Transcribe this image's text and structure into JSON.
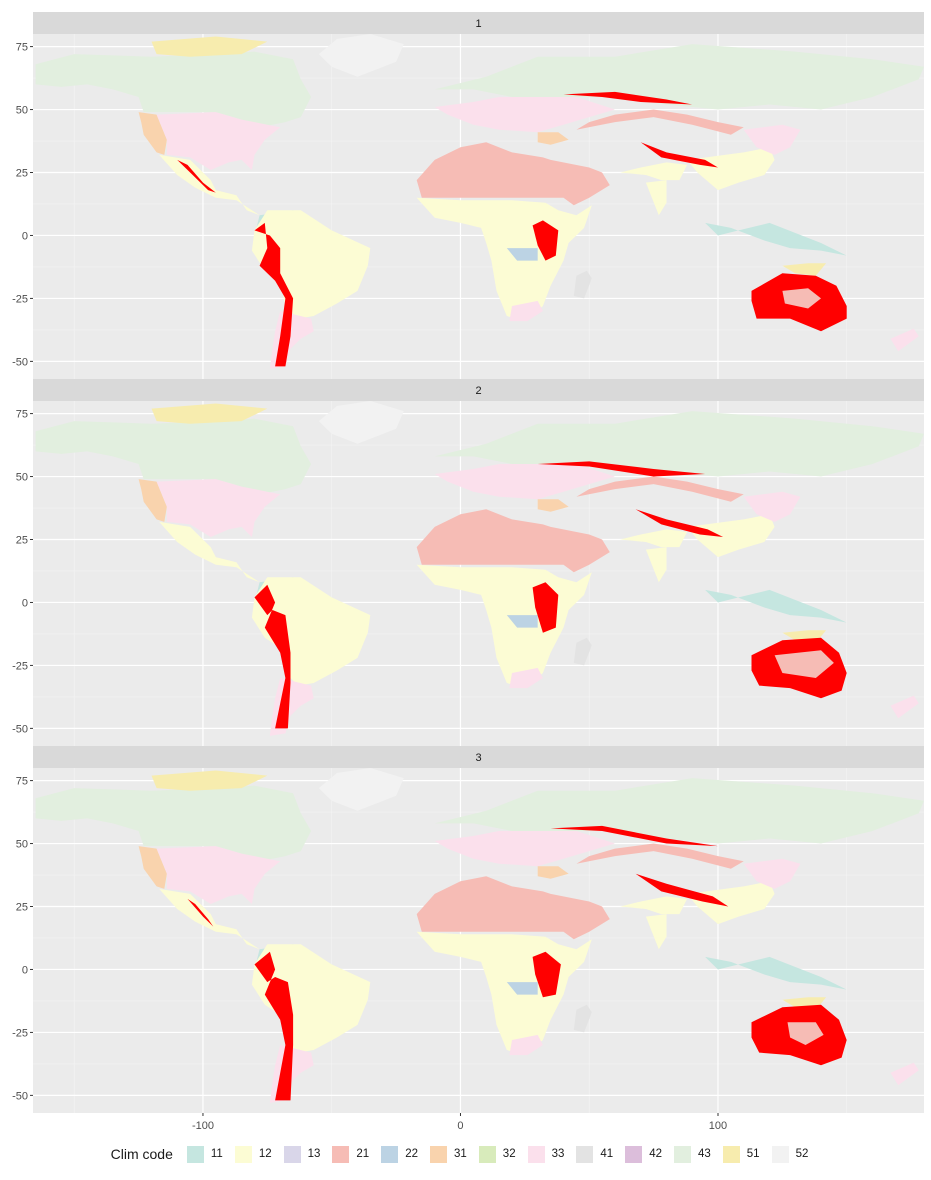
{
  "panels": [
    {
      "strip": "1"
    },
    {
      "strip": "2"
    },
    {
      "strip": "3"
    }
  ],
  "axes": {
    "x_ticks": [
      "-100",
      "0",
      "100"
    ],
    "y_ticks": [
      "75",
      "50",
      "25",
      "0",
      "-25",
      "-50"
    ]
  },
  "legend": {
    "title": "Clim code",
    "items": [
      {
        "label": "11",
        "color": "#c5e6e0"
      },
      {
        "label": "12",
        "color": "#fcfcd4"
      },
      {
        "label": "13",
        "color": "#d9d6e9"
      },
      {
        "label": "21",
        "color": "#f6bcb5"
      },
      {
        "label": "22",
        "color": "#bcd3e4"
      },
      {
        "label": "31",
        "color": "#f9d3ad"
      },
      {
        "label": "32",
        "color": "#d8ebbb"
      },
      {
        "label": "33",
        "color": "#fbe0ec"
      },
      {
        "label": "41",
        "color": "#e3e3e3"
      },
      {
        "label": "42",
        "color": "#dcbedb"
      },
      {
        "label": "43",
        "color": "#e2efdf"
      },
      {
        "label": "51",
        "color": "#f7ecae"
      },
      {
        "label": "52",
        "color": "#f2f2f2"
      }
    ]
  },
  "colors": {
    "panel_bg": "#ebebeb",
    "strip_bg": "#d9d9d9",
    "grid_major": "#ffffff",
    "highlight": "#ff0000"
  }
}
